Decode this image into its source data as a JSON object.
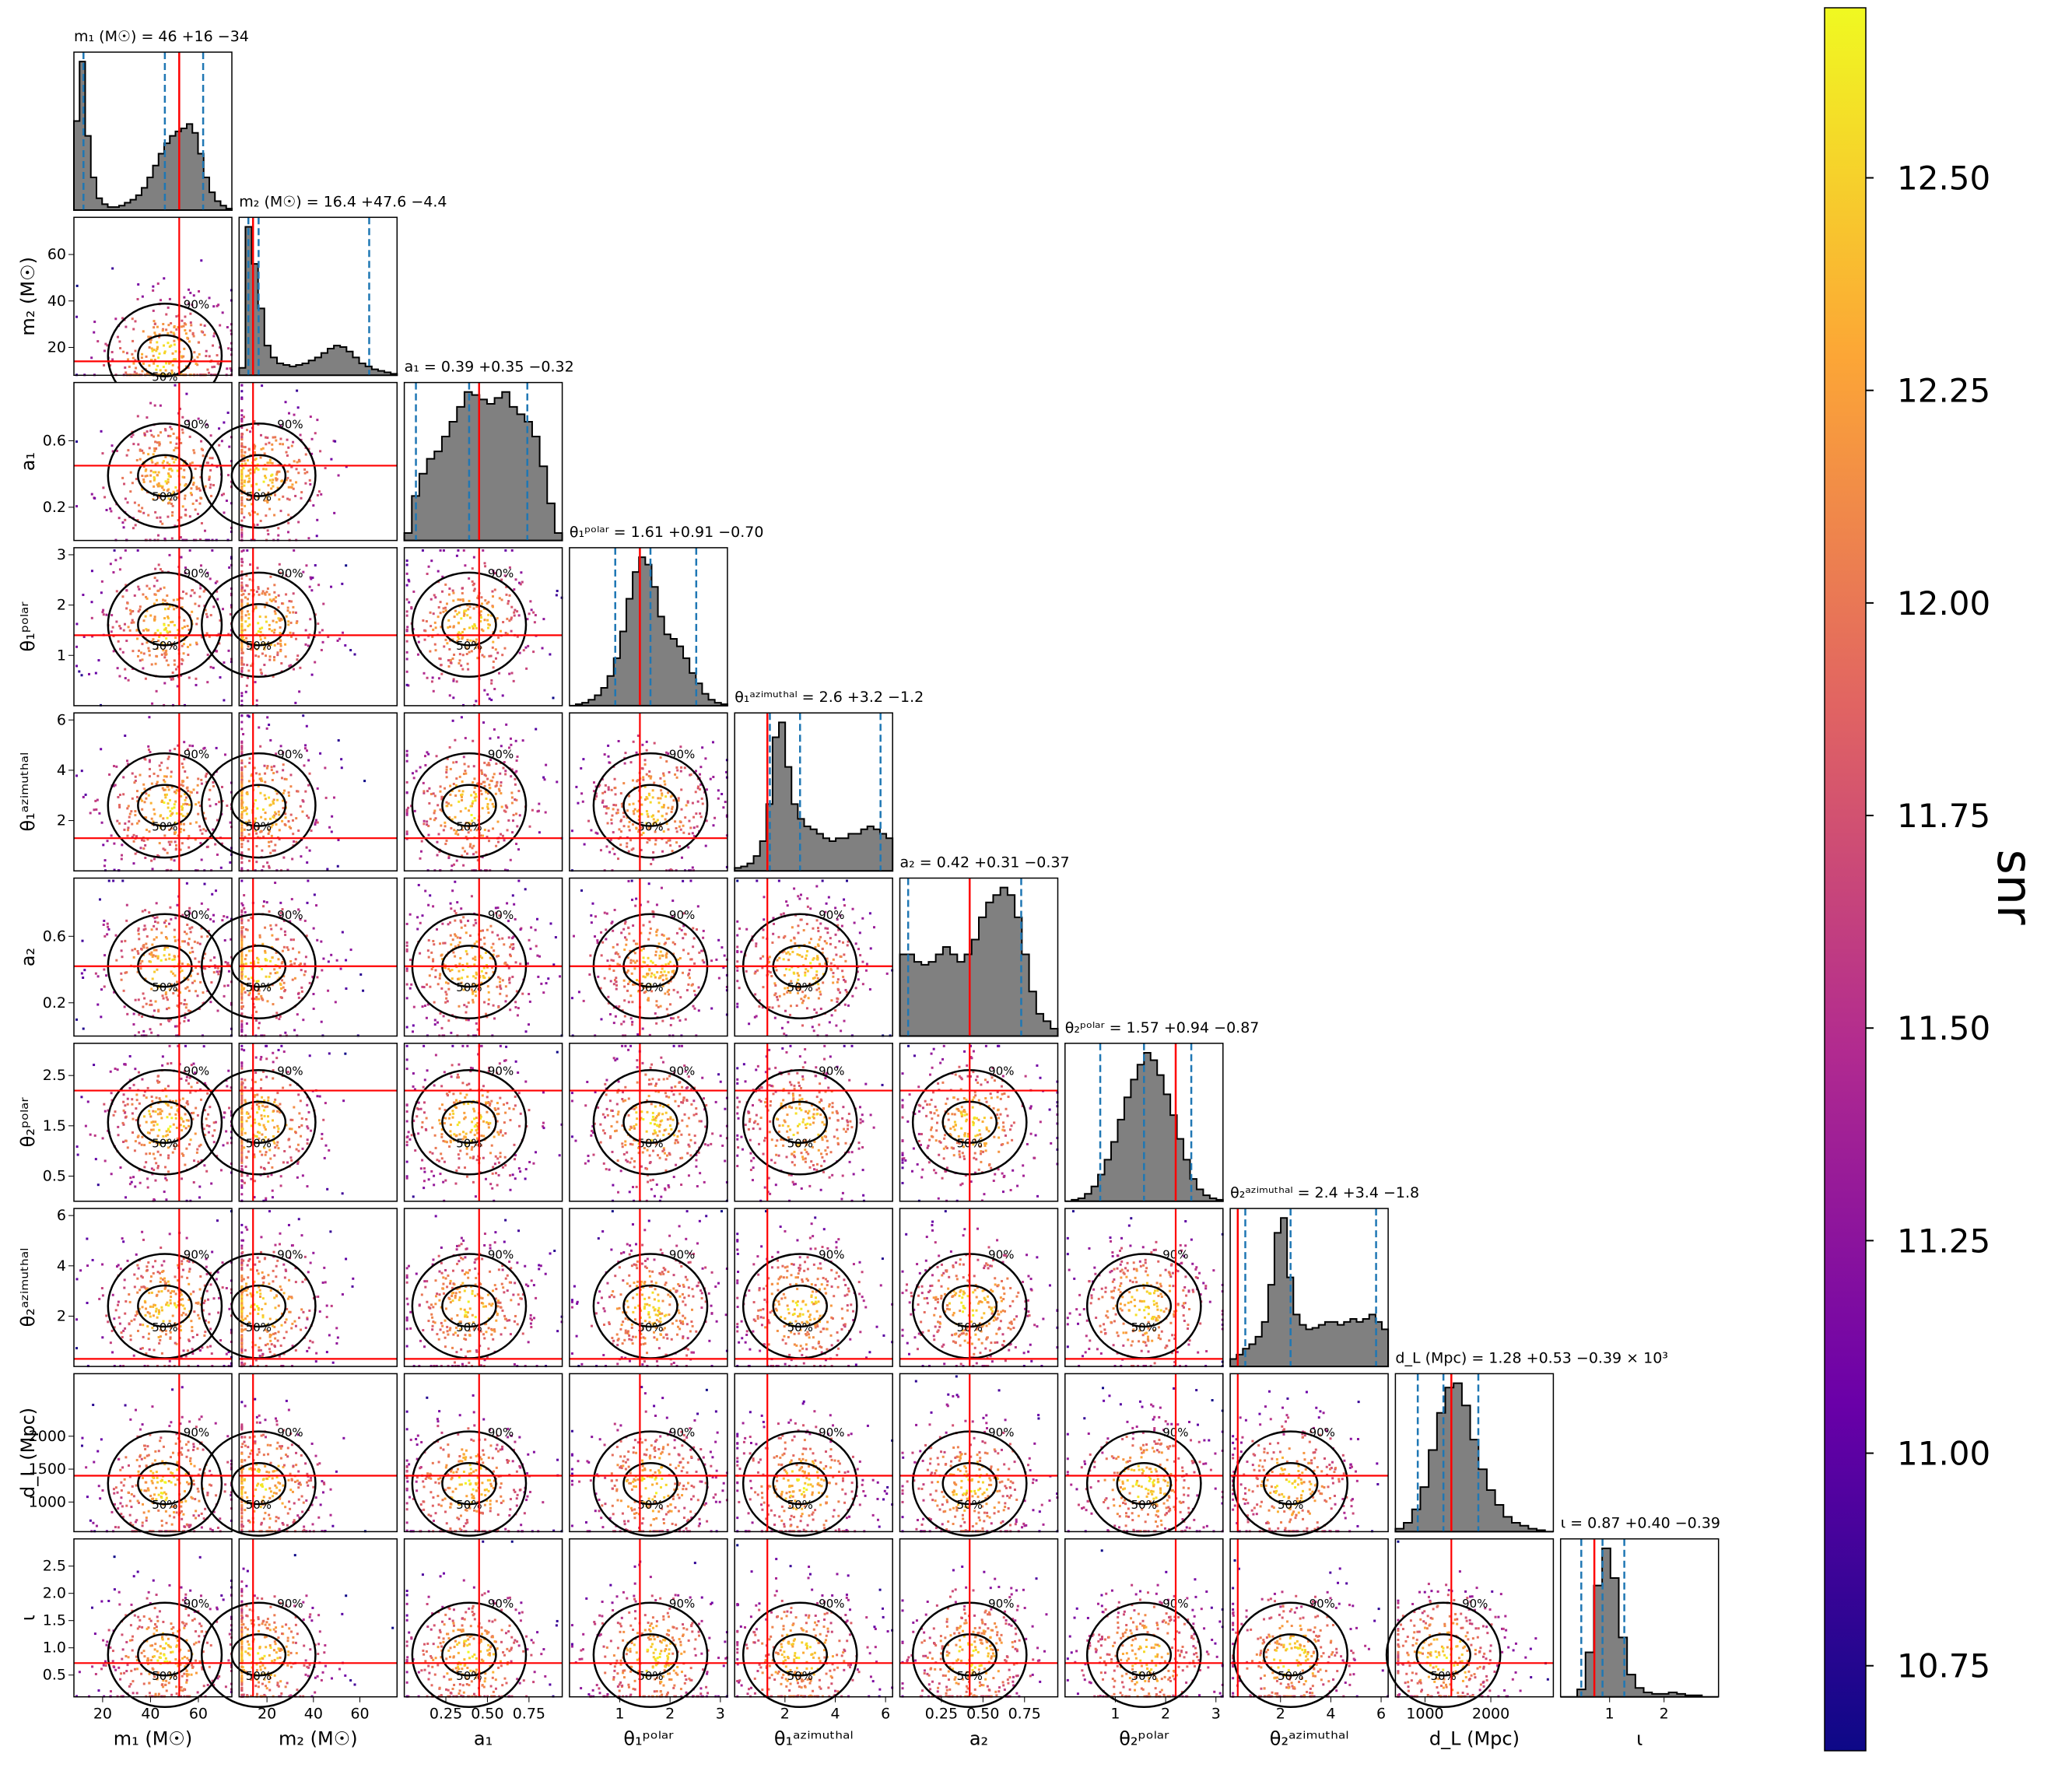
{
  "chart_data": {
    "type": "corner",
    "colorbar": {
      "label": "snr",
      "range": [
        10.65,
        12.7
      ],
      "ticks": [
        "10.75",
        "11.00",
        "11.25",
        "11.50",
        "11.75",
        "12.00",
        "12.25",
        "12.50"
      ],
      "colormap": "plasma"
    },
    "contour_levels": [
      "50%",
      "90%"
    ],
    "colors": {
      "truth": "#ff0000",
      "quantile": "#1f77b4",
      "hist_fill": "#808080",
      "contour": "#000000",
      "cmap": [
        "#0d0887",
        "#6a00a8",
        "#b12a90",
        "#e16462",
        "#fca636",
        "#f0f921"
      ]
    },
    "params": [
      {
        "key": "m1",
        "xlabel": "m₁ (M☉)",
        "ylabel": "",
        "title": "m₁ (M☉) = 46 +16 −34",
        "range": [
          8,
          74
        ],
        "ticks": [
          20,
          40,
          60
        ],
        "tick_labels": [
          "20",
          "40",
          "60"
        ],
        "truth": 52,
        "quantiles": [
          12,
          46,
          62
        ],
        "hist": [
          0.6,
          1.0,
          0.5,
          0.22,
          0.08,
          0.04,
          0.02,
          0.02,
          0.03,
          0.05,
          0.07,
          0.1,
          0.15,
          0.22,
          0.3,
          0.38,
          0.45,
          0.5,
          0.53,
          0.55,
          0.58,
          0.52,
          0.38,
          0.22,
          0.12,
          0.06,
          0.03,
          0.01
        ]
      },
      {
        "key": "m2",
        "xlabel": "m₂ (M☉)",
        "ylabel": "m₂ (M☉)",
        "title": "m₂ (M☉) = 16.4 +47.6 −4.4",
        "range": [
          8,
          76
        ],
        "ticks": [
          20,
          40,
          60
        ],
        "tick_labels": [
          "20",
          "40",
          "60"
        ],
        "truth": 14,
        "quantiles": [
          12,
          16.4,
          64
        ],
        "hist": [
          0.05,
          1.0,
          0.75,
          0.45,
          0.2,
          0.12,
          0.08,
          0.07,
          0.06,
          0.07,
          0.08,
          0.1,
          0.12,
          0.15,
          0.18,
          0.2,
          0.19,
          0.16,
          0.12,
          0.08,
          0.06,
          0.04,
          0.03,
          0.02,
          0.01
        ]
      },
      {
        "key": "a1",
        "xlabel": "a₁",
        "ylabel": "a₁",
        "title": "a₁ = 0.39 +0.35 −0.32",
        "range": [
          0.0,
          0.95
        ],
        "ticks": [
          0.25,
          0.5,
          0.75
        ],
        "tick_labels": [
          "0.25",
          "0.50",
          "0.75"
        ],
        "truth": 0.45,
        "quantiles": [
          0.07,
          0.39,
          0.74
        ],
        "hist": [
          0.05,
          0.3,
          0.45,
          0.55,
          0.6,
          0.7,
          0.8,
          0.9,
          1.0,
          0.98,
          0.95,
          0.92,
          0.96,
          1.0,
          0.9,
          0.85,
          0.8,
          0.7,
          0.5,
          0.25,
          0.05
        ]
      },
      {
        "key": "th1",
        "xlabel": "θ₁ᵖᵒˡᵃʳ",
        "ylabel": "θ₁ᵖᵒˡᵃʳ",
        "title": "θ₁ᵖᵒˡᵃʳ = 1.61 +0.91 −0.70",
        "range": [
          0.0,
          3.14
        ],
        "ticks": [
          1,
          2,
          3
        ],
        "tick_labels": [
          "1",
          "2",
          "3"
        ],
        "truth": 1.4,
        "quantiles": [
          0.91,
          1.61,
          2.52
        ],
        "hist": [
          0.0,
          0.01,
          0.02,
          0.04,
          0.07,
          0.12,
          0.2,
          0.32,
          0.5,
          0.72,
          0.9,
          1.0,
          0.95,
          0.8,
          0.6,
          0.48,
          0.45,
          0.4,
          0.32,
          0.22,
          0.15,
          0.08,
          0.04,
          0.02,
          0.01
        ]
      },
      {
        "key": "ph1",
        "xlabel": "θ₁ᵃᶻⁱᵐᵘᵗʰᵃˡ",
        "ylabel": "θ₁ᵃᶻⁱᵐᵘᵗʰᵃˡ",
        "title": "θ₁ᵃᶻⁱᵐᵘᵗʰᵃˡ = 2.6 +3.2 −1.2",
        "range": [
          0.0,
          6.28
        ],
        "ticks": [
          2,
          4,
          6
        ],
        "tick_labels": [
          "2",
          "4",
          "6"
        ],
        "truth": 1.3,
        "quantiles": [
          1.4,
          2.6,
          5.8
        ],
        "hist": [
          0.02,
          0.03,
          0.05,
          0.1,
          0.2,
          0.45,
          0.9,
          1.0,
          0.7,
          0.45,
          0.35,
          0.3,
          0.28,
          0.25,
          0.22,
          0.2,
          0.22,
          0.22,
          0.25,
          0.25,
          0.28,
          0.3,
          0.28,
          0.25,
          0.22
        ]
      },
      {
        "key": "a2",
        "xlabel": "a₂",
        "ylabel": "a₂",
        "title": "a₂ = 0.42 +0.31 −0.37",
        "range": [
          0.0,
          0.95
        ],
        "ticks": [
          0.25,
          0.5,
          0.75
        ],
        "tick_labels": [
          "0.25",
          "0.50",
          "0.75"
        ],
        "truth": 0.42,
        "quantiles": [
          0.05,
          0.42,
          0.73
        ],
        "hist": [
          0.55,
          0.55,
          0.5,
          0.48,
          0.5,
          0.55,
          0.6,
          0.55,
          0.5,
          0.55,
          0.65,
          0.8,
          0.9,
          0.95,
          1.0,
          0.95,
          0.8,
          0.55,
          0.3,
          0.15,
          0.1,
          0.05
        ]
      },
      {
        "key": "th2",
        "xlabel": "θ₂ᵖᵒˡᵃʳ",
        "ylabel": "θ₂ᵖᵒˡᵃʳ",
        "title": "θ₂ᵖᵒˡᵃʳ = 1.57 +0.94 −0.87",
        "range": [
          0.0,
          3.14
        ],
        "ticks": [
          1,
          2,
          3
        ],
        "tick_labels": [
          "1",
          "2",
          "3"
        ],
        "truth": 2.2,
        "quantiles": [
          0.7,
          1.57,
          2.51
        ],
        "hist": [
          0.0,
          0.01,
          0.02,
          0.05,
          0.1,
          0.18,
          0.28,
          0.4,
          0.55,
          0.7,
          0.82,
          0.92,
          1.0,
          0.95,
          0.85,
          0.72,
          0.58,
          0.42,
          0.28,
          0.15,
          0.08,
          0.04,
          0.02,
          0.01
        ]
      },
      {
        "key": "ph2",
        "xlabel": "θ₂ᵃᶻⁱᵐᵘᵗʰᵃˡ",
        "ylabel": "θ₂ᵃᶻⁱᵐᵘᵗʰᵃˡ",
        "title": "θ₂ᵃᶻⁱᵐᵘᵗʰᵃˡ = 2.4 +3.4 −1.8",
        "range": [
          0.0,
          6.28
        ],
        "ticks": [
          2,
          4,
          6
        ],
        "tick_labels": [
          "2",
          "4",
          "6"
        ],
        "truth": 0.3,
        "quantiles": [
          0.6,
          2.4,
          5.8
        ],
        "hist": [
          0.05,
          0.08,
          0.12,
          0.15,
          0.2,
          0.3,
          0.55,
          0.9,
          1.0,
          0.6,
          0.35,
          0.28,
          0.25,
          0.26,
          0.28,
          0.3,
          0.3,
          0.28,
          0.3,
          0.32,
          0.3,
          0.32,
          0.35,
          0.3,
          0.25
        ]
      },
      {
        "key": "dL",
        "xlabel": "d_L (Mpc)",
        "ylabel": "d_L (Mpc)",
        "title": "d_L (Mpc) = 1.28 +0.53 −0.39 × 10³",
        "range": [
          550,
          2950
        ],
        "ticks": [
          1000,
          2000
        ],
        "tick_labels": [
          "1000",
          "2000"
        ],
        "ytick_values": [
          1000,
          1500,
          2000
        ],
        "ytick_labels": [
          "1000",
          "1500",
          "2000"
        ],
        "truth": 1400,
        "quantiles": [
          890,
          1280,
          1810
        ],
        "hist": [
          0.02,
          0.06,
          0.15,
          0.3,
          0.55,
          0.8,
          0.97,
          1.0,
          0.85,
          0.62,
          0.42,
          0.28,
          0.18,
          0.1,
          0.06,
          0.04,
          0.02,
          0.01,
          0.0
        ]
      },
      {
        "key": "iota",
        "xlabel": "ι",
        "ylabel": "ι",
        "title": "ι = 0.87 +0.40 −0.39",
        "range": [
          0.1,
          3.0
        ],
        "ticks": [
          1,
          2
        ],
        "tick_labels": [
          "1",
          "2"
        ],
        "ytick_values": [
          0.5,
          1.0,
          1.5,
          2.0,
          2.5
        ],
        "ytick_labels": [
          "0.5",
          "1.0",
          "1.5",
          "2.0",
          "2.5"
        ],
        "truth": 0.72,
        "quantiles": [
          0.48,
          0.87,
          1.27
        ],
        "hist": [
          0.0,
          0.0,
          0.05,
          0.3,
          0.75,
          1.0,
          0.8,
          0.4,
          0.15,
          0.06,
          0.03,
          0.02,
          0.02,
          0.03,
          0.02,
          0.01,
          0.01,
          0.0,
          0.0
        ]
      }
    ],
    "ytick_overrides": {
      "m2": {
        "values": [
          20,
          40,
          60
        ],
        "labels": [
          "20",
          "40",
          "60"
        ]
      },
      "a1": {
        "values": [
          0.2,
          0.6
        ],
        "labels": [
          "0.2",
          "0.6"
        ]
      },
      "th1": {
        "values": [
          1,
          2,
          3
        ],
        "labels": [
          "1",
          "2",
          "3"
        ]
      },
      "ph1": {
        "values": [
          2,
          4,
          6
        ],
        "labels": [
          "2",
          "4",
          "6"
        ]
      },
      "a2": {
        "values": [
          0.2,
          0.6
        ],
        "labels": [
          "0.2",
          "0.6"
        ]
      },
      "th2": {
        "values": [
          0.5,
          1.5,
          2.5
        ],
        "labels": [
          "0.5",
          "1.5",
          "2.5"
        ]
      },
      "ph2": {
        "values": [
          2,
          4,
          6
        ],
        "labels": [
          "2",
          "4",
          "6"
        ]
      }
    }
  }
}
